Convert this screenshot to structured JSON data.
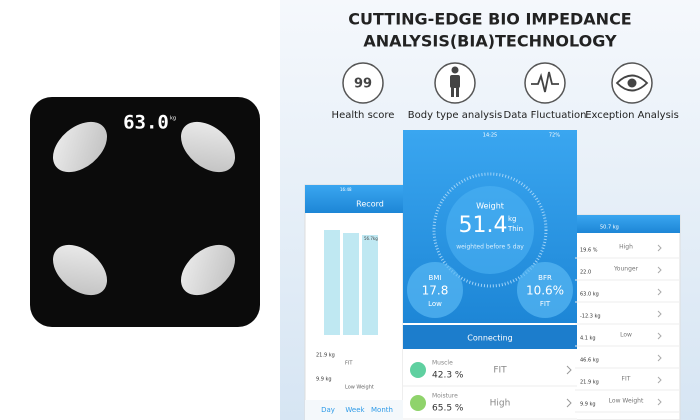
{
  "scale": {
    "display": "63.0",
    "unit": "kg"
  },
  "header": {
    "title_line1": "CUTTING-EDGE BIO IMPEDANCE",
    "title_line2": "ANALYSIS(BIA)TECHNOLOGY"
  },
  "features": [
    {
      "label": "Health score",
      "icon_text": "99"
    },
    {
      "label": "Body type analysis"
    },
    {
      "label": "Data Fluctuation"
    },
    {
      "label": "Exception Analysis"
    }
  ],
  "center_phone": {
    "time": "14:25",
    "battery": "72%",
    "weight_label": "Weight",
    "weight": "51.4",
    "unit": "kg",
    "status": "Thin",
    "note": "weighted before 5 day",
    "bmi_label": "BMI",
    "bmi": "17.8",
    "bmi_status": "Low",
    "bfr_label": "BFR",
    "bfr": "10.6%",
    "bfr_status": "FIT",
    "connect": "Connecting",
    "rows": [
      {
        "name": "Muscle",
        "value": "42.3 %",
        "status": "FIT"
      },
      {
        "name": "Moisture",
        "value": "65.5 %",
        "status": "High"
      }
    ]
  },
  "left_phone": {
    "time": "16:48",
    "title": "Record",
    "bar_label": "56.7kg",
    "items": [
      {
        "value": "21.9 kg",
        "status": "FIT"
      },
      {
        "value": "9.9 kg",
        "status": "Low Weight"
      }
    ],
    "tabs": [
      "Day",
      "Week",
      "Month"
    ]
  },
  "right_phone": {
    "header": "50.7 kg",
    "rows": [
      {
        "value": "19.6 %",
        "status": "High"
      },
      {
        "value": "22.0",
        "status": "Younger"
      },
      {
        "value": "63.0 kg"
      },
      {
        "value": "-12.3 kg"
      },
      {
        "value": "4.1 kg",
        "status": "Low"
      },
      {
        "value": "46.6 kg"
      },
      {
        "value": "21.9 kg",
        "status": "FIT"
      },
      {
        "value": "9.9 kg",
        "status": "Low Weight"
      }
    ]
  }
}
